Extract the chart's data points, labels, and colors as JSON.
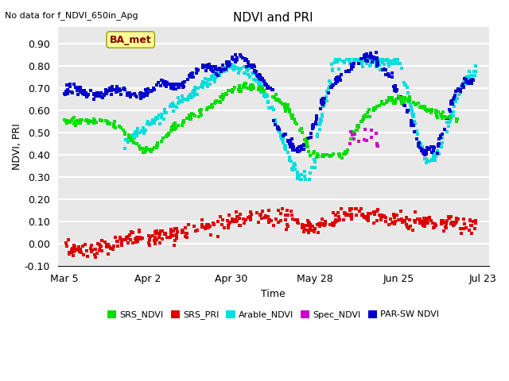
{
  "title": "NDVI and PRI",
  "top_left_text": "No data for f_NDVI_650in_Apg",
  "xlabel": "Time",
  "ylabel": "NDVI, PRI",
  "ylim": [
    -0.1,
    0.975
  ],
  "yticks": [
    -0.1,
    0.0,
    0.1,
    0.2,
    0.3,
    0.4,
    0.5,
    0.6,
    0.7,
    0.8,
    0.9
  ],
  "xtick_labels": [
    "Mar 5",
    "Apr 2",
    "Apr 30",
    "May 28",
    "Jun 25",
    "Jul 23"
  ],
  "colors": {
    "SRS_NDVI": "#00dd00",
    "SRS_PRI": "#dd0000",
    "Arable_NDVI": "#00dddd",
    "Spec_NDVI": "#cc00cc",
    "PAR_SW_NDVI": "#0000cc"
  },
  "legend_labels": [
    "SRS_NDVI",
    "SRS_PRI",
    "Arable_NDVI",
    "Spec_NDVI",
    "PAR-SW NDVI"
  ],
  "annotation_text": "BA_met",
  "annotation_color": "#880000",
  "annotation_bg": "#ffff99",
  "background_color": "#e8e8e8",
  "grid_color": "#ffffff",
  "marker_size": 3.5
}
